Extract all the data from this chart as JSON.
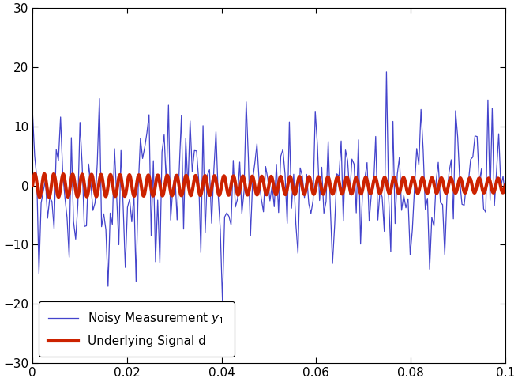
{
  "title": "",
  "xlabel": "",
  "ylabel": "",
  "xlim": [
    0,
    0.1
  ],
  "ylim": [
    -30,
    30
  ],
  "yticks": [
    -30,
    -20,
    -10,
    0,
    10,
    20,
    30
  ],
  "xticks": [
    0,
    0.02,
    0.04,
    0.06,
    0.08,
    0.1
  ],
  "noisy_color": "#4444cc",
  "signal_color": "#cc2200",
  "noisy_linewidth": 0.9,
  "signal_linewidth": 3.0,
  "noise_std": 7.0,
  "signal_amplitude": 2.0,
  "signal_freq": 500,
  "n_points": 220,
  "seed": 3,
  "legend_loc": "lower left",
  "figsize": [
    6.56,
    4.83
  ],
  "dpi": 100
}
